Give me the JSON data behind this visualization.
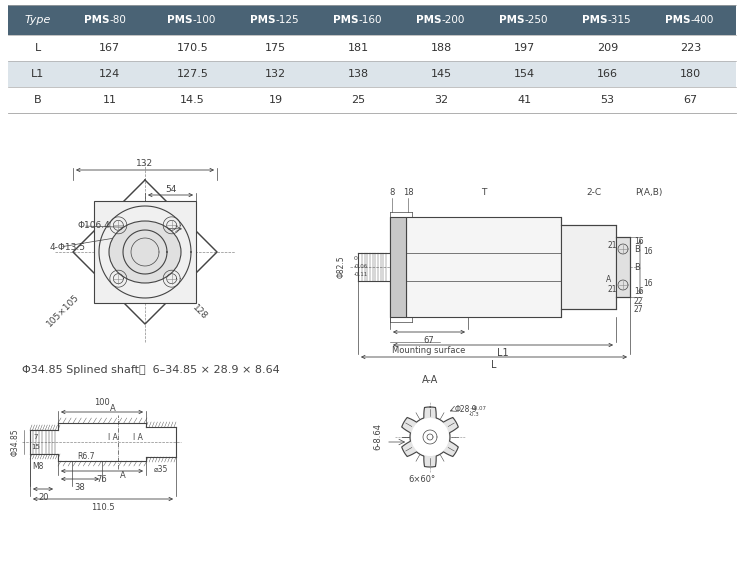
{
  "table_header": [
    "Type",
    "PMS-80",
    "PMS-100",
    "PMS-125",
    "PMS-160",
    "PMS-200",
    "PMS-250",
    "PMS-315",
    "PMS-400"
  ],
  "table_rows": [
    [
      "L",
      "167",
      "170.5",
      "175",
      "181",
      "188",
      "197",
      "209",
      "223"
    ],
    [
      "L1",
      "124",
      "127.5",
      "132",
      "138",
      "145",
      "154",
      "166",
      "180"
    ],
    [
      "B",
      "11",
      "14.5",
      "19",
      "25",
      "32",
      "41",
      "53",
      "67"
    ]
  ],
  "header_bg": "#4a6375",
  "header_fg": "#ffffff",
  "row_bg_even": "#ffffff",
  "row_bg_odd": "#dce4ea",
  "cell_text_color": "#333333",
  "bg_color": "#ffffff",
  "shaft_label": "Φ34.85 Splined shaft，  6–34.85 × 28.9 × 8.64",
  "lc": "#444444",
  "dim_color": "#444444"
}
